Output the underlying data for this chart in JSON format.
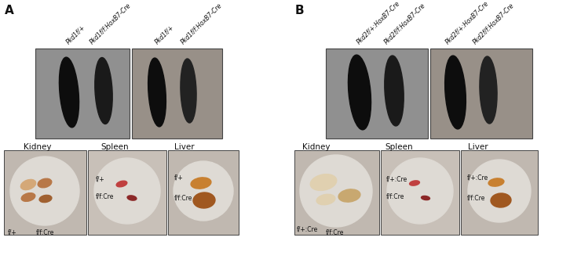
{
  "panel_A_label": "A",
  "panel_B_label": "B",
  "panel_A_genotypes": [
    "Pkd1f/+",
    "Pkd1f/f:HoxB7-Cre",
    "Pkd1f/+",
    "Pkd1f/f:HoxB7-Cre"
  ],
  "panel_B_genotypes": [
    "Pkd2f/+:HoxB7-Cre",
    "Pkd2f/f:HoxB7-Cre",
    "Pkd2f/+:HoxB7-Cre",
    "Pkd2f/f:HoxB7-Cre"
  ],
  "organ_labels_A": [
    "Kidney",
    "Spleen",
    "Liver"
  ],
  "organ_labels_B": [
    "Kidney",
    "Spleen",
    "Liver"
  ],
  "kidney_labels_A_bottom": [
    "f/+",
    "f/f:Cre"
  ],
  "spleen_labels_A": [
    "f/+",
    "f/f:Cre"
  ],
  "liver_labels_A": [
    "f/+",
    "f/f:Cre"
  ],
  "kidney_labels_B_bottom": [
    "f/+:Cre",
    "f/f:Cre"
  ],
  "spleen_labels_B": [
    "f/+:Cre",
    "f/f:Cre"
  ],
  "liver_labels_B": [
    "f/+:Cre",
    "f/f:Cre"
  ],
  "bg_color": "#ffffff",
  "mouse_box_bg_dark": "#888888",
  "mouse_box_bg_light": "#a0a0a0",
  "organ_box_bg": "#c8c0b8",
  "plate_color": "#e8e4de",
  "border_color": "#444444",
  "text_color": "#111111",
  "mouse_color_dark": "#0d0d0d",
  "mouse_color_med": "#1a1a1a",
  "kidney_color_light": "#d4a878",
  "kidney_color_dark": "#b87848",
  "spleen_color": "#c04040",
  "spleen_color_dark": "#8c2828",
  "liver_color_light": "#c88030",
  "liver_color_dark": "#a05820",
  "kidney_B_color_light": "#e0d0b0",
  "kidney_B_color_dark": "#c8a870",
  "font_size_genotype": 5.5,
  "font_size_panel": 11,
  "font_size_organ": 7.5,
  "font_size_small_label": 5.5
}
